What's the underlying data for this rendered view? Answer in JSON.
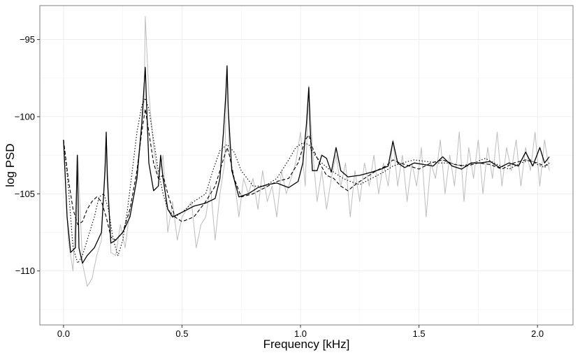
{
  "chart_data": {
    "type": "line",
    "title": "",
    "xlabel": "Frequency [kHz]",
    "ylabel": "log PSD",
    "xlim": [
      -0.1,
      2.15
    ],
    "ylim": [
      -113.5,
      -92.8
    ],
    "x_ticks": [
      0.0,
      0.5,
      1.0,
      1.5,
      2.0
    ],
    "x_tick_labels": [
      "0.0",
      "0.5",
      "1.0",
      "1.5",
      "2.0"
    ],
    "y_ticks": [
      -95,
      -100,
      -105,
      -110
    ],
    "y_tick_labels": [
      "−95",
      "−100",
      "−105",
      "−110"
    ],
    "grid": true,
    "legend": "none",
    "series": [
      {
        "style": "raw",
        "color": "#bdbdbd",
        "x": [
          0.0,
          0.02,
          0.04,
          0.06,
          0.08,
          0.1,
          0.12,
          0.14,
          0.16,
          0.18,
          0.2,
          0.22,
          0.24,
          0.26,
          0.28,
          0.3,
          0.32,
          0.34,
          0.345,
          0.36,
          0.38,
          0.4,
          0.42,
          0.44,
          0.46,
          0.48,
          0.5,
          0.52,
          0.54,
          0.56,
          0.58,
          0.6,
          0.62,
          0.64,
          0.66,
          0.68,
          0.69,
          0.7,
          0.72,
          0.74,
          0.76,
          0.78,
          0.8,
          0.82,
          0.84,
          0.86,
          0.88,
          0.9,
          0.92,
          0.94,
          0.96,
          0.98,
          1.0,
          1.02,
          1.035,
          1.05,
          1.07,
          1.09,
          1.11,
          1.13,
          1.15,
          1.17,
          1.19,
          1.21,
          1.23,
          1.25,
          1.27,
          1.29,
          1.31,
          1.33,
          1.35,
          1.37,
          1.39,
          1.41,
          1.43,
          1.45,
          1.47,
          1.49,
          1.51,
          1.53,
          1.55,
          1.57,
          1.59,
          1.61,
          1.63,
          1.65,
          1.67,
          1.69,
          1.71,
          1.73,
          1.75,
          1.77,
          1.79,
          1.81,
          1.83,
          1.85,
          1.87,
          1.89,
          1.91,
          1.93,
          1.95,
          1.97,
          1.99,
          2.01,
          2.03,
          2.05
        ],
        "y": [
          -101.5,
          -108.0,
          -110.0,
          -102.5,
          -109.5,
          -111.0,
          -110.5,
          -109.0,
          -108.0,
          -101.2,
          -108.8,
          -109.0,
          -107.0,
          -108.5,
          -106.0,
          -105.0,
          -102.0,
          -99.0,
          -93.5,
          -98.5,
          -102.0,
          -104.0,
          -102.5,
          -107.5,
          -105.5,
          -108.0,
          -106.5,
          -106.0,
          -105.5,
          -108.5,
          -107.0,
          -106.5,
          -104.5,
          -108.0,
          -105.0,
          -103.0,
          -96.8,
          -102.5,
          -104.0,
          -106.5,
          -104.0,
          -105.0,
          -104.0,
          -106.0,
          -103.5,
          -105.5,
          -104.5,
          -106.5,
          -103.5,
          -105.0,
          -104.0,
          -103.0,
          -101.0,
          -104.5,
          -98.0,
          -102.0,
          -105.5,
          -103.5,
          -106.0,
          -104.0,
          -102.5,
          -104.5,
          -103.0,
          -106.5,
          -103.5,
          -105.5,
          -103.0,
          -104.5,
          -102.5,
          -105.0,
          -103.0,
          -104.5,
          -101.5,
          -104.5,
          -102.5,
          -105.5,
          -103.0,
          -104.5,
          -102.0,
          -106.5,
          -103.0,
          -104.0,
          -101.5,
          -105.0,
          -102.5,
          -104.5,
          -101.0,
          -105.5,
          -102.0,
          -104.0,
          -101.5,
          -105.0,
          -102.0,
          -104.0,
          -101.0,
          -104.5,
          -102.0,
          -103.5,
          -101.5,
          -104.5,
          -102.0,
          -103.5,
          -101.0,
          -104.5,
          -101.5,
          -103.5
        ]
      },
      {
        "style": "solid",
        "color": "#000000",
        "x": [
          0.0,
          0.015,
          0.03,
          0.05,
          0.058,
          0.065,
          0.08,
          0.1,
          0.13,
          0.16,
          0.175,
          0.18,
          0.185,
          0.2,
          0.22,
          0.25,
          0.28,
          0.31,
          0.33,
          0.34,
          0.345,
          0.35,
          0.36,
          0.38,
          0.4,
          0.41,
          0.42,
          0.44,
          0.46,
          0.5,
          0.55,
          0.6,
          0.64,
          0.66,
          0.675,
          0.685,
          0.69,
          0.695,
          0.71,
          0.74,
          0.78,
          0.82,
          0.86,
          0.9,
          0.95,
          0.99,
          1.01,
          1.025,
          1.035,
          1.04,
          1.05,
          1.07,
          1.09,
          1.11,
          1.13,
          1.15,
          1.17,
          1.2,
          1.25,
          1.3,
          1.34,
          1.37,
          1.39,
          1.41,
          1.44,
          1.48,
          1.52,
          1.56,
          1.6,
          1.64,
          1.68,
          1.72,
          1.76,
          1.8,
          1.84,
          1.88,
          1.92,
          1.95,
          1.98,
          2.01,
          2.03,
          2.05
        ],
        "y": [
          -101.5,
          -106.5,
          -108.8,
          -108.5,
          -102.5,
          -108.5,
          -109.5,
          -109.0,
          -108.5,
          -107.5,
          -103.5,
          -101.0,
          -104.0,
          -108.2,
          -108.0,
          -107.5,
          -106.5,
          -104.0,
          -100.5,
          -98.0,
          -96.8,
          -99.0,
          -103.0,
          -104.8,
          -104.5,
          -102.5,
          -104.0,
          -106.0,
          -106.5,
          -106.2,
          -105.8,
          -105.6,
          -105.3,
          -104.0,
          -101.0,
          -98.5,
          -96.7,
          -99.5,
          -103.5,
          -105.2,
          -105.0,
          -104.6,
          -104.4,
          -104.3,
          -104.6,
          -104.2,
          -103.0,
          -100.5,
          -98.1,
          -100.5,
          -103.5,
          -103.5,
          -102.5,
          -102.7,
          -103.6,
          -102.0,
          -103.5,
          -103.9,
          -103.8,
          -103.6,
          -103.4,
          -103.2,
          -101.6,
          -103.0,
          -103.3,
          -103.0,
          -103.1,
          -103.2,
          -102.6,
          -103.2,
          -103.4,
          -103.0,
          -103.0,
          -102.9,
          -103.3,
          -103.0,
          -103.2,
          -102.3,
          -103.2,
          -102.0,
          -103.0,
          -102.6
        ]
      },
      {
        "style": "dashed",
        "color": "#000000",
        "x": [
          0.0,
          0.02,
          0.04,
          0.06,
          0.08,
          0.1,
          0.12,
          0.14,
          0.16,
          0.18,
          0.2,
          0.22,
          0.25,
          0.28,
          0.31,
          0.33,
          0.345,
          0.36,
          0.38,
          0.4,
          0.42,
          0.44,
          0.47,
          0.5,
          0.55,
          0.6,
          0.64,
          0.66,
          0.68,
          0.69,
          0.7,
          0.72,
          0.75,
          0.8,
          0.85,
          0.9,
          0.95,
          0.99,
          1.02,
          1.035,
          1.05,
          1.08,
          1.11,
          1.14,
          1.17,
          1.2,
          1.24,
          1.28,
          1.32,
          1.36,
          1.39,
          1.42,
          1.46,
          1.5,
          1.55,
          1.6,
          1.65,
          1.7,
          1.75,
          1.8,
          1.85,
          1.9,
          1.95,
          2.0,
          2.03,
          2.05
        ],
        "y": [
          -101.5,
          -104.0,
          -106.0,
          -107.0,
          -106.8,
          -106.0,
          -105.5,
          -105.2,
          -105.5,
          -106.5,
          -107.8,
          -108.0,
          -107.5,
          -106.0,
          -103.5,
          -101.0,
          -99.5,
          -101.0,
          -103.0,
          -104.0,
          -103.8,
          -105.0,
          -106.5,
          -106.8,
          -106.5,
          -105.5,
          -104.5,
          -103.5,
          -102.5,
          -102.0,
          -102.5,
          -104.0,
          -105.2,
          -105.0,
          -104.6,
          -104.2,
          -104.0,
          -103.0,
          -101.5,
          -101.2,
          -102.0,
          -103.0,
          -103.8,
          -104.0,
          -104.5,
          -104.8,
          -104.3,
          -103.9,
          -103.5,
          -103.2,
          -102.8,
          -103.0,
          -103.2,
          -103.4,
          -103.0,
          -102.8,
          -103.1,
          -103.2,
          -103.0,
          -103.1,
          -103.4,
          -103.0,
          -102.8,
          -103.0,
          -103.2,
          -103.0
        ]
      },
      {
        "style": "dotted",
        "color": "#000000",
        "x": [
          0.0,
          0.02,
          0.04,
          0.06,
          0.08,
          0.1,
          0.13,
          0.15,
          0.17,
          0.19,
          0.21,
          0.23,
          0.25,
          0.27,
          0.29,
          0.31,
          0.33,
          0.345,
          0.36,
          0.38,
          0.4,
          0.42,
          0.44,
          0.47,
          0.5,
          0.55,
          0.6,
          0.63,
          0.66,
          0.69,
          0.72,
          0.75,
          0.8,
          0.85,
          0.9,
          0.95,
          0.98,
          1.01,
          1.035,
          1.06,
          1.09,
          1.12,
          1.15,
          1.18,
          1.21,
          1.25,
          1.3,
          1.35,
          1.39,
          1.43,
          1.48,
          1.53,
          1.58,
          1.63,
          1.68,
          1.73,
          1.78,
          1.83,
          1.88,
          1.93,
          1.97,
          2.0,
          2.03,
          2.05
        ],
        "y": [
          -101.5,
          -104.5,
          -108.5,
          -109.5,
          -109.0,
          -108.0,
          -106.5,
          -105.2,
          -105.0,
          -106.0,
          -108.0,
          -109.0,
          -108.0,
          -106.0,
          -103.5,
          -101.0,
          -99.3,
          -98.8,
          -99.5,
          -101.5,
          -103.5,
          -105.0,
          -106.0,
          -106.5,
          -106.2,
          -105.5,
          -105.0,
          -103.5,
          -102.2,
          -101.8,
          -102.3,
          -103.5,
          -104.5,
          -104.5,
          -104.0,
          -102.8,
          -102.0,
          -101.7,
          -101.8,
          -102.5,
          -103.0,
          -103.4,
          -103.7,
          -104.0,
          -104.2,
          -104.4,
          -104.0,
          -103.6,
          -103.2,
          -103.0,
          -102.8,
          -102.9,
          -103.0,
          -103.0,
          -103.2,
          -103.0,
          -102.7,
          -103.1,
          -103.4,
          -103.0,
          -102.8,
          -103.1,
          -103.3,
          -103.0
        ]
      }
    ]
  }
}
